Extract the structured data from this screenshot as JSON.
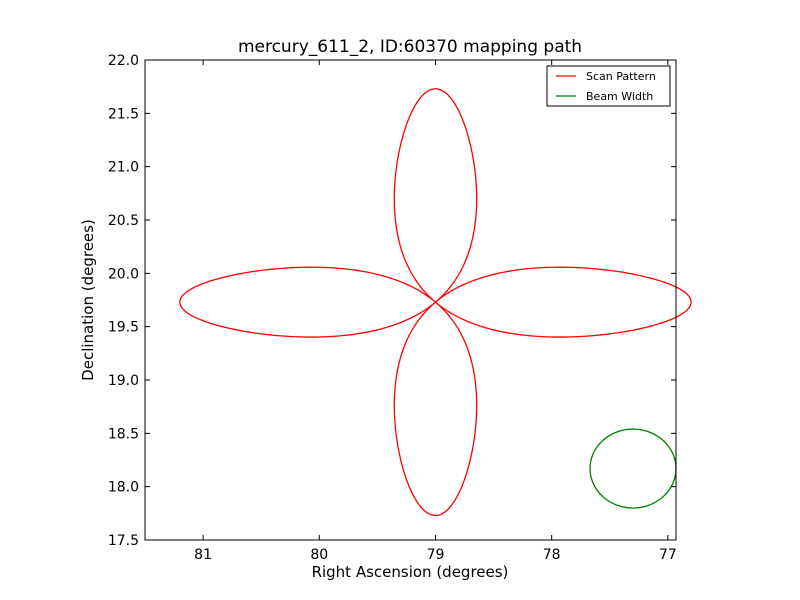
{
  "chart_data": {
    "type": "line",
    "title": "mercury_611_2, ID:60370 mapping path",
    "xlabel": "Right Ascension (degrees)",
    "ylabel": "Declination (degrees)",
    "xlim": [
      81.5,
      76.93
    ],
    "ylim": [
      17.5,
      22.0
    ],
    "x_reversed": true,
    "xticks": [
      81,
      80,
      79,
      78,
      77
    ],
    "xtick_labels": [
      "81",
      "80",
      "79",
      "78",
      "77"
    ],
    "yticks": [
      17.5,
      18.0,
      18.5,
      19.0,
      19.5,
      20.0,
      20.5,
      21.0,
      21.5,
      22.0
    ],
    "ytick_labels": [
      "17.5",
      "18.0",
      "18.5",
      "19.0",
      "19.5",
      "20.0",
      "20.5",
      "21.0",
      "21.5",
      "22.0"
    ],
    "grid": false,
    "legend_position": "top-right",
    "series": [
      {
        "name": "Scan Pattern",
        "color": "#ff0000",
        "shape": "four-petal rose",
        "center": [
          79.0,
          19.73
        ],
        "petal_reach": {
          "ra": 2.2,
          "dec": 2.0
        },
        "petal_half_width": {
          "ra": 0.58,
          "dec": 0.54
        }
      },
      {
        "name": "Beam Width",
        "color": "#008000",
        "shape": "circle",
        "center": [
          77.3,
          18.17
        ],
        "radius": 0.37
      }
    ]
  }
}
